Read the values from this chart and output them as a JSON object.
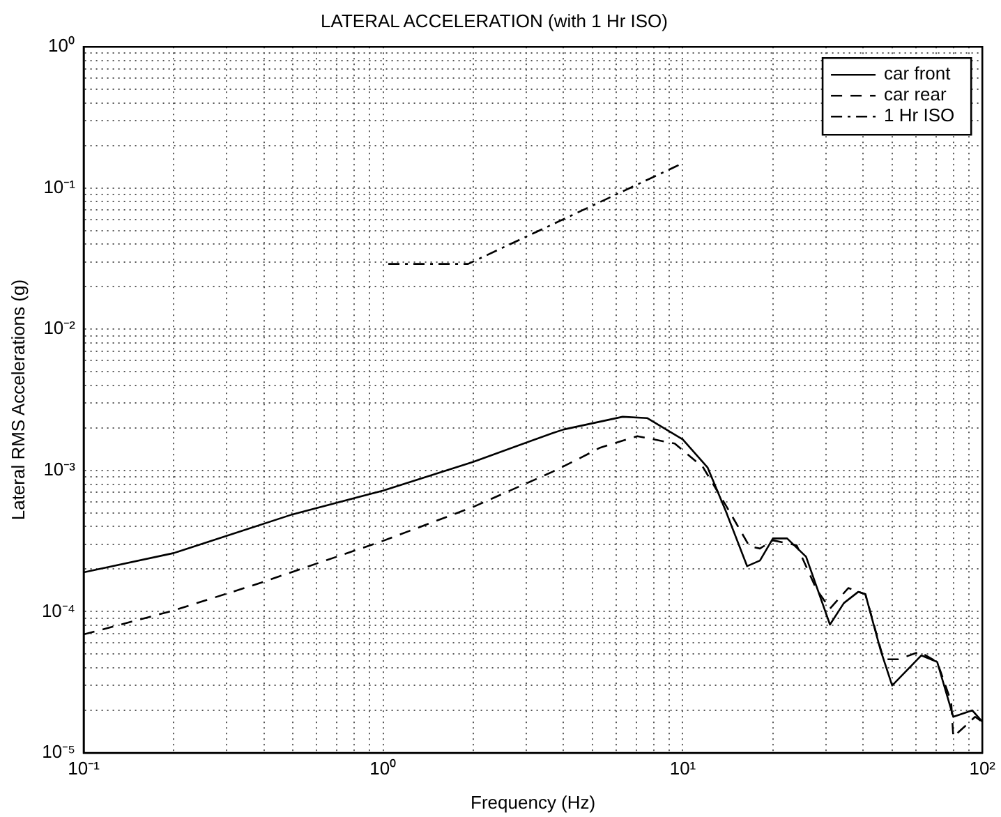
{
  "chart_data": {
    "type": "line",
    "title": "LATERAL ACCELERATION (with 1 Hr ISO)",
    "xlabel": "Frequency (Hz)",
    "ylabel": "Lateral RMS Accelerations (g)",
    "log": "xy",
    "grid": true,
    "legend": "top right",
    "marker": "none",
    "xlim": [
      0.1,
      100
    ],
    "ylim": [
      1e-05,
      1
    ],
    "xticks": [
      {
        "value": 0.1,
        "label": "10⁻¹"
      },
      {
        "value": 0.2,
        "label": null
      },
      {
        "value": 0.3,
        "label": null
      },
      {
        "value": 0.4,
        "label": null
      },
      {
        "value": 0.5,
        "label": null
      },
      {
        "value": 0.6,
        "label": null
      },
      {
        "value": 0.7,
        "label": null
      },
      {
        "value": 0.8,
        "label": null
      },
      {
        "value": 0.9,
        "label": null
      },
      {
        "value": 1,
        "label": "10⁰"
      },
      {
        "value": 2,
        "label": null
      },
      {
        "value": 3,
        "label": null
      },
      {
        "value": 4,
        "label": null
      },
      {
        "value": 5,
        "label": null
      },
      {
        "value": 6,
        "label": null
      },
      {
        "value": 7,
        "label": null
      },
      {
        "value": 8,
        "label": null
      },
      {
        "value": 9,
        "label": null
      },
      {
        "value": 10,
        "label": "10¹"
      },
      {
        "value": 20,
        "label": null
      },
      {
        "value": 30,
        "label": null
      },
      {
        "value": 40,
        "label": null
      },
      {
        "value": 50,
        "label": null
      },
      {
        "value": 60,
        "label": null
      },
      {
        "value": 70,
        "label": null
      },
      {
        "value": 80,
        "label": null
      },
      {
        "value": 90,
        "label": null
      },
      {
        "value": 100,
        "label": "10²"
      }
    ],
    "yticks": [
      {
        "value": 1e-05,
        "label": "10⁻⁵"
      },
      {
        "value": 2e-05,
        "label": null
      },
      {
        "value": 3e-05,
        "label": null
      },
      {
        "value": 4e-05,
        "label": null
      },
      {
        "value": 5e-05,
        "label": null
      },
      {
        "value": 6e-05,
        "label": null
      },
      {
        "value": 7e-05,
        "label": null
      },
      {
        "value": 8e-05,
        "label": null
      },
      {
        "value": 9e-05,
        "label": null
      },
      {
        "value": 0.0001,
        "label": "10⁻⁴"
      },
      {
        "value": 0.0002,
        "label": null
      },
      {
        "value": 0.0003,
        "label": null
      },
      {
        "value": 0.0004,
        "label": null
      },
      {
        "value": 0.0005,
        "label": null
      },
      {
        "value": 0.0006,
        "label": null
      },
      {
        "value": 0.0007,
        "label": null
      },
      {
        "value": 0.0008,
        "label": null
      },
      {
        "value": 0.0009,
        "label": null
      },
      {
        "value": 0.001,
        "label": "10⁻³"
      },
      {
        "value": 0.002,
        "label": null
      },
      {
        "value": 0.003,
        "label": null
      },
      {
        "value": 0.004,
        "label": null
      },
      {
        "value": 0.005,
        "label": null
      },
      {
        "value": 0.006,
        "label": null
      },
      {
        "value": 0.007,
        "label": null
      },
      {
        "value": 0.008,
        "label": null
      },
      {
        "value": 0.009,
        "label": null
      },
      {
        "value": 0.01,
        "label": "10⁻²"
      },
      {
        "value": 0.02,
        "label": null
      },
      {
        "value": 0.03,
        "label": null
      },
      {
        "value": 0.04,
        "label": null
      },
      {
        "value": 0.05,
        "label": null
      },
      {
        "value": 0.06,
        "label": null
      },
      {
        "value": 0.07,
        "label": null
      },
      {
        "value": 0.08,
        "label": null
      },
      {
        "value": 0.09,
        "label": null
      },
      {
        "value": 0.1,
        "label": "10⁻¹"
      },
      {
        "value": 0.2,
        "label": null
      },
      {
        "value": 0.3,
        "label": null
      },
      {
        "value": 0.4,
        "label": null
      },
      {
        "value": 0.5,
        "label": null
      },
      {
        "value": 0.6,
        "label": null
      },
      {
        "value": 0.7,
        "label": null
      },
      {
        "value": 0.8,
        "label": null
      },
      {
        "value": 0.9,
        "label": null
      },
      {
        "value": 1,
        "label": "10⁰"
      }
    ],
    "series": [
      {
        "name": "car front",
        "color": "#000000",
        "line_style": "solid",
        "x": [
          0.1,
          0.2,
          0.5,
          1,
          2,
          3.68,
          4,
          6.3,
          7.6,
          10,
          12.1,
          13.9,
          16.4,
          18.1,
          20,
          22.3,
          25.8,
          31,
          34.5,
          38.5,
          40.7,
          45.8,
          50,
          62.6,
          70.7,
          80,
          92.6,
          100
        ],
        "values": [
          0.00019,
          0.00026,
          0.00049,
          0.00072,
          0.00115,
          0.00184,
          0.00195,
          0.0024,
          0.00235,
          0.00166,
          0.00105,
          0.00052,
          0.00021,
          0.00023,
          0.00033,
          0.00033,
          0.000245,
          8.1e-05,
          0.000115,
          0.000138,
          0.000133,
          5.3e-05,
          3e-05,
          4.9e-05,
          4.4e-05,
          1.8e-05,
          2e-05,
          1.66e-05
        ]
      },
      {
        "name": "car rear",
        "color": "#000000",
        "line_style": "dashed",
        "x": [
          0.1,
          0.2,
          0.39,
          0.565,
          0.97,
          1.99,
          3.68,
          4.6,
          5.3,
          7.05,
          9.4,
          11.7,
          13.9,
          16.7,
          18.1,
          20,
          24,
          27.9,
          31,
          35.7,
          40.7,
          46.8,
          52.5,
          61.7,
          70.7,
          78.7,
          80,
          87.7,
          94.6,
          100
        ],
        "values": [
          6.9e-05,
          0.000102,
          0.00016,
          0.00021,
          0.00031,
          0.00055,
          0.00098,
          0.00124,
          0.00145,
          0.00175,
          0.00155,
          0.00105,
          0.00057,
          0.00029,
          0.00028,
          0.00032,
          0.000295,
          0.000145,
          0.000105,
          0.000147,
          0.000133,
          4.6e-05,
          4.6e-05,
          5.2e-05,
          4.4e-05,
          2.3e-05,
          1.3e-05,
          1.55e-05,
          1.8e-05,
          1.66e-05
        ]
      },
      {
        "name": "1 Hr ISO",
        "color": "#000000",
        "line_style": "dashdot",
        "x": [
          1.04,
          1.92,
          9.4,
          10
        ],
        "values": [
          0.029,
          0.029,
          0.141,
          0.15
        ]
      }
    ]
  }
}
